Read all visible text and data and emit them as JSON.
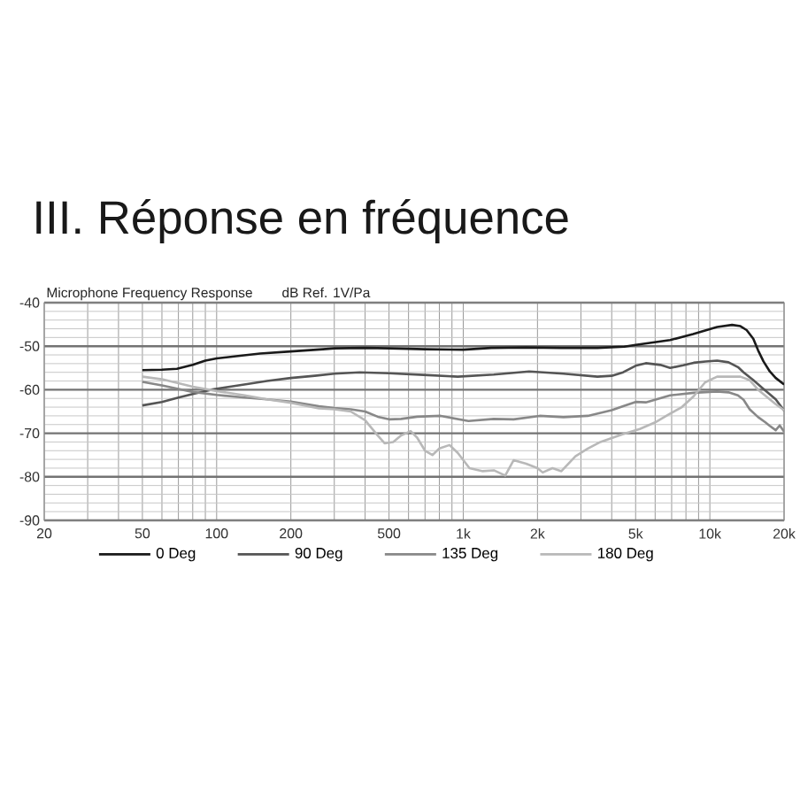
{
  "chart_data": {
    "type": "line",
    "title": "III. Réponse en fréquence",
    "subtitle": "Microphone Frequency Response",
    "ylabel": "dB Ref. 1V/Pa",
    "log": "x",
    "grid": true,
    "legend": "bottom",
    "xlim": [
      20,
      20000
    ],
    "xticks": [
      20,
      50,
      100,
      200,
      500,
      {
        "value": 1000,
        "label": "1k"
      },
      {
        "value": 2000,
        "label": "2k"
      },
      {
        "value": 5000,
        "label": "5k"
      },
      {
        "value": 10000,
        "label": "10k"
      },
      {
        "value": 20000,
        "label": "20k"
      }
    ],
    "ylim": [
      -90,
      -40
    ],
    "yticks": [
      -90,
      -80,
      -70,
      -60,
      -50,
      -40
    ],
    "series": [
      {
        "name": "0 Deg",
        "color": "#1a1a1a",
        "x": [
          50,
          60,
          69,
          80,
          90,
          100,
          120,
          150,
          200,
          270,
          300,
          400,
          500,
          600,
          700,
          1000,
          1300,
          1800,
          2500,
          3500,
          4500,
          5000,
          6900,
          8550,
          10700,
          12300,
          13300,
          14100,
          15000,
          15700,
          16500,
          17500,
          18500,
          20000
        ],
        "values": [
          -55.5,
          -55.4,
          -55.2,
          -54.3,
          -53.3,
          -52.8,
          -52.3,
          -51.7,
          -51.2,
          -50.7,
          -50.5,
          -50.4,
          -50.5,
          -50.6,
          -50.7,
          -50.8,
          -50.4,
          -50.3,
          -50.4,
          -50.4,
          -50.1,
          -49.7,
          -48.6,
          -47.2,
          -45.6,
          -45.1,
          -45.4,
          -46.3,
          -48.3,
          -51.0,
          -53.5,
          -55.8,
          -57.3,
          -58.8
        ]
      },
      {
        "name": "90 Deg",
        "color": "#555555",
        "x": [
          50,
          60,
          70,
          80,
          95,
          110,
          133,
          160,
          200,
          250,
          300,
          380,
          500,
          690,
          950,
          1330,
          1850,
          2550,
          3500,
          4000,
          4450,
          5000,
          5500,
          6300,
          6900,
          7800,
          8600,
          9600,
          10700,
          11900,
          13000,
          13700,
          15000,
          16500,
          18500,
          20000
        ],
        "values": [
          -63.6,
          -62.8,
          -61.8,
          -61.0,
          -60.0,
          -59.4,
          -58.7,
          -58.0,
          -57.3,
          -56.8,
          -56.3,
          -56.0,
          -56.2,
          -56.6,
          -57.0,
          -56.5,
          -55.8,
          -56.3,
          -57.0,
          -56.8,
          -56.0,
          -54.5,
          -53.9,
          -54.3,
          -55.0,
          -54.4,
          -53.8,
          -53.5,
          -53.3,
          -53.7,
          -54.8,
          -56.0,
          -57.8,
          -59.8,
          -62.2,
          -64.8
        ]
      },
      {
        "name": "135 Deg",
        "color": "#888888",
        "x": [
          50,
          60,
          70,
          80,
          100,
          130,
          160,
          200,
          260,
          300,
          350,
          400,
          450,
          500,
          560,
          650,
          810,
          1050,
          1330,
          1600,
          2040,
          2550,
          3200,
          4000,
          4450,
          5000,
          5500,
          6900,
          8600,
          10700,
          11900,
          13000,
          13700,
          14500,
          15700,
          16800,
          17500,
          18500,
          19200,
          20000
        ],
        "values": [
          -58.2,
          -59.0,
          -59.8,
          -60.5,
          -61.2,
          -61.8,
          -62.2,
          -62.7,
          -63.8,
          -64.2,
          -64.5,
          -65.0,
          -66.2,
          -66.8,
          -66.7,
          -66.2,
          -66.0,
          -67.2,
          -66.7,
          -66.8,
          -66.0,
          -66.3,
          -66.0,
          -64.7,
          -63.8,
          -62.8,
          -62.9,
          -61.3,
          -60.7,
          -60.4,
          -60.6,
          -61.3,
          -62.3,
          -64.5,
          -66.3,
          -67.5,
          -68.3,
          -69.3,
          -68.2,
          -69.6
        ]
      },
      {
        "name": "180 Deg",
        "color": "#b8b8b8",
        "x": [
          50,
          60,
          70,
          80,
          100,
          130,
          160,
          200,
          260,
          300,
          350,
          400,
          450,
          480,
          520,
          560,
          612,
          650,
          700,
          750,
          800,
          880,
          950,
          1060,
          1200,
          1330,
          1480,
          1600,
          1800,
          2000,
          2100,
          2300,
          2500,
          2850,
          3200,
          3600,
          4450,
          5200,
          6000,
          6900,
          7700,
          8600,
          9570,
          10700,
          13300,
          14500,
          15700,
          18500,
          20000
        ],
        "values": [
          -57.0,
          -57.6,
          -58.5,
          -59.3,
          -60.3,
          -61.3,
          -62.2,
          -63.0,
          -64.3,
          -64.5,
          -65.0,
          -67.0,
          -70.5,
          -72.3,
          -72.0,
          -70.5,
          -69.5,
          -71.0,
          -74.0,
          -75.0,
          -73.5,
          -72.7,
          -74.5,
          -78.0,
          -78.7,
          -78.5,
          -79.7,
          -76.2,
          -77.0,
          -78.0,
          -79.0,
          -78.0,
          -78.7,
          -75.3,
          -73.5,
          -72.0,
          -70.2,
          -69.0,
          -67.5,
          -65.5,
          -64.0,
          -61.5,
          -58.3,
          -57.0,
          -57.0,
          -57.8,
          -60.0,
          -63.3,
          -64.7
        ]
      }
    ]
  }
}
